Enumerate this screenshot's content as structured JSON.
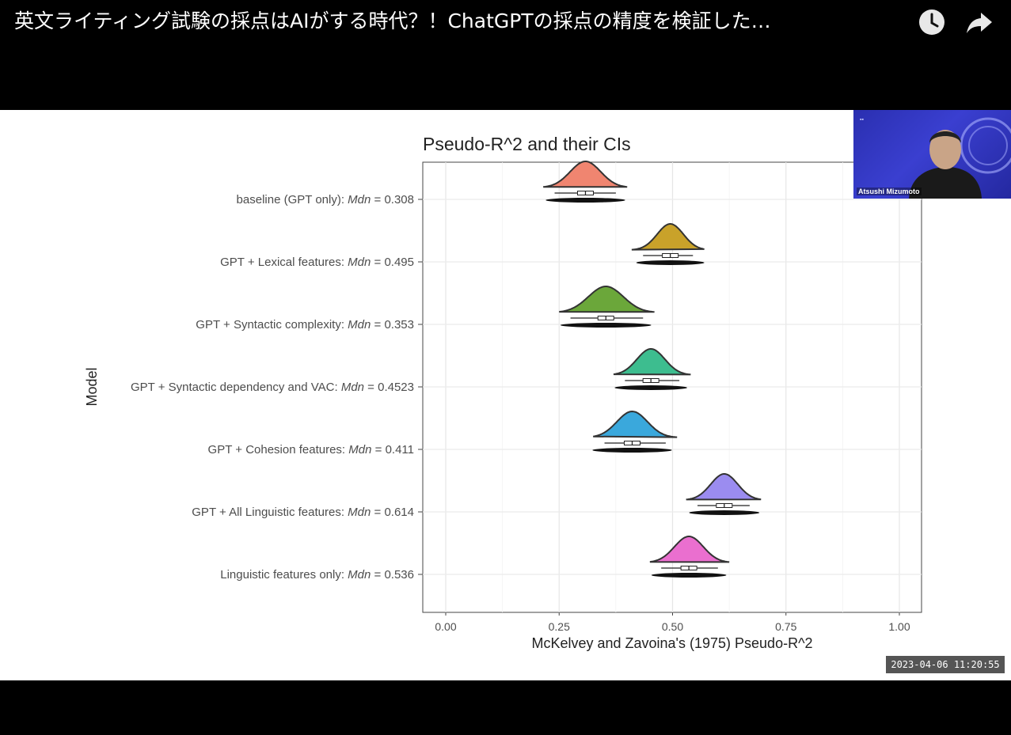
{
  "video": {
    "title": "英文ライティング試験の採点はAIがする時代？！ChatGPTの採点の精度を検証した…",
    "watch_later_icon": "clock-icon",
    "share_icon": "share-arrow-icon"
  },
  "webcam": {
    "name": "Atsushi Mizumoto"
  },
  "timestamp": "2023-04-06 11:20:55",
  "chart_data": {
    "type": "ridgeline",
    "title": "Pseudo-R^2 and their CIs",
    "xlabel": "McKelvey and Zavoina's (1975) Pseudo-R^2",
    "ylabel": "Model",
    "xlim": [
      0,
      1
    ],
    "xticks": [
      "0.00",
      "0.25",
      "0.50",
      "0.75",
      "1.00"
    ],
    "grid": true,
    "legend": "none",
    "categories": [
      {
        "label": "baseline (GPT only): ",
        "mdn_label": "Mdn",
        "value_text": " = 0.308",
        "median": 0.308,
        "ci": [
          0.22,
          0.395
        ],
        "color": "#f08570"
      },
      {
        "label": "GPT + Lexical features: ",
        "mdn_label": "Mdn",
        "value_text": " = 0.495",
        "median": 0.495,
        "ci": [
          0.415,
          0.565
        ],
        "color": "#c9a22a"
      },
      {
        "label": "GPT + Syntactic complexity: ",
        "mdn_label": "Mdn",
        "value_text": " = 0.353",
        "median": 0.353,
        "ci": [
          0.255,
          0.455
        ],
        "color": "#6ba73a"
      },
      {
        "label": "GPT + Syntactic dependency and VAC: ",
        "mdn_label": "Mdn",
        "value_text": " = 0.4523",
        "median": 0.4523,
        "ci": [
          0.375,
          0.535
        ],
        "color": "#3dbd8f"
      },
      {
        "label": "GPT + Cohesion features: ",
        "mdn_label": "Mdn",
        "value_text": " = 0.411",
        "median": 0.411,
        "ci": [
          0.33,
          0.505
        ],
        "color": "#3aa8dc"
      },
      {
        "label": "GPT + All Linguistic features: ",
        "mdn_label": "Mdn",
        "value_text": " = 0.614",
        "median": 0.614,
        "ci": [
          0.535,
          0.69
        ],
        "color": "#9b8cf0"
      },
      {
        "label": "Linguistic features only: ",
        "mdn_label": "Mdn",
        "value_text": " = 0.536",
        "median": 0.536,
        "ci": [
          0.455,
          0.62
        ],
        "color": "#ea6fcf"
      }
    ]
  }
}
